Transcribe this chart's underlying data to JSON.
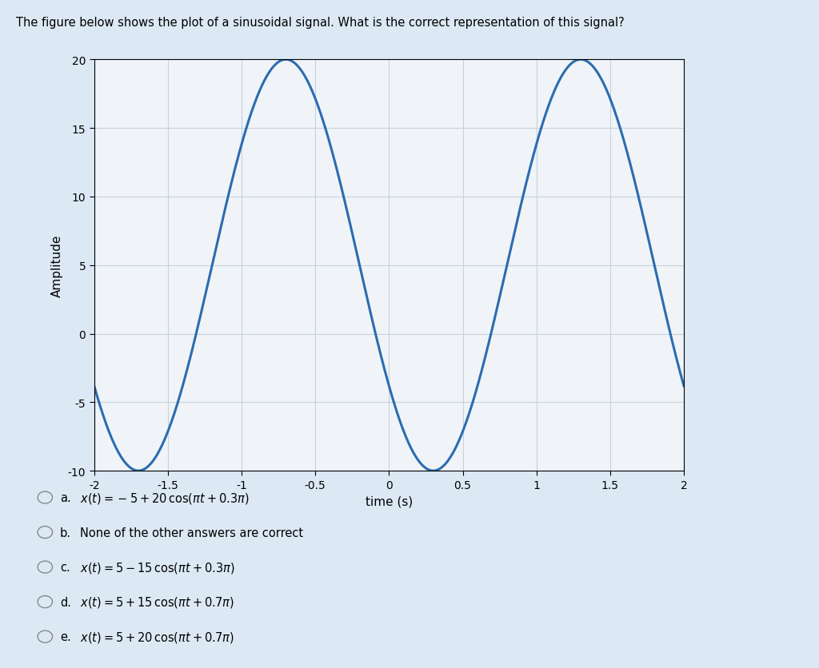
{
  "title": "The figure below shows the plot of a sinusoidal signal. What is the correct representation of this signal?",
  "xlabel": "time (s)",
  "ylabel": "Amplitude",
  "xlim": [
    -2,
    2
  ],
  "ylim": [
    -10,
    20
  ],
  "xticks": [
    -2,
    -1.5,
    -1,
    -0.5,
    0,
    0.5,
    1,
    1.5,
    2
  ],
  "yticks": [
    -10,
    -5,
    0,
    5,
    10,
    15,
    20
  ],
  "line_color": "#2b6cb0",
  "line_width": 2.2,
  "signal_dc": 5,
  "signal_amplitude": 15,
  "signal_omega_factor": 1.0,
  "signal_phase_factor": 0.7,
  "bg_color": "#dce9f5",
  "plot_bg": "#f0f4f8",
  "grid_color": "#c8d0dc",
  "option_labels": [
    "a.",
    "b.",
    "c.",
    "d.",
    "e."
  ],
  "option_texts_math": [
    "x(t) = -5 + 20\\,\\cos(\\pi t + 0.3\\pi)",
    "None of the other answers are correct",
    "x(t) = 5 - 15\\,\\cos(\\pi t + 0.3\\pi)",
    "x(t) = 5 + 15\\,\\cos(\\pi t + 0.7\\pi)",
    "x(t) = 5 + 20\\,\\cos(\\pi t + 0.7\\pi)"
  ]
}
